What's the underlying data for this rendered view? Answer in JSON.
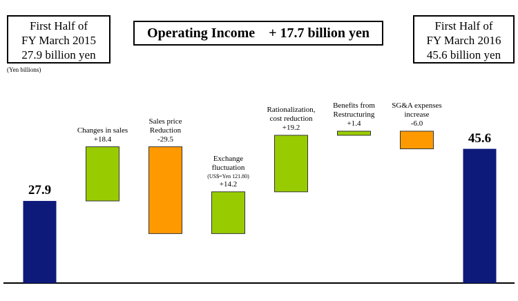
{
  "chart_data": {
    "type": "waterfall",
    "title": "Operating Income    + 17.7 billion yen",
    "left_box": [
      "First Half of",
      "FY March 2015",
      "27.9 billion yen"
    ],
    "right_box": [
      "First Half of",
      "FY March 2016",
      "45.6 billion yen"
    ],
    "unit_label": "(Yen billions)",
    "categories": [
      null,
      "Changes in sales",
      "Sales price\nReduction",
      "Exchange\nfluctuation",
      "Rationalization,\ncost reduction",
      "Benefits from\nRestructuring",
      "SG&A expenses\nincrease",
      null
    ],
    "category_notes": [
      null,
      null,
      null,
      "(US$=Yen 121.80)",
      null,
      null,
      null,
      null
    ],
    "values": [
      27.9,
      18.4,
      -29.5,
      14.2,
      19.2,
      1.4,
      -6.0,
      45.6
    ],
    "value_labels": [
      "27.9",
      "+18.4",
      "-29.5",
      "+14.2",
      "+19.2",
      "+1.4",
      "-6.0",
      "45.6"
    ],
    "is_total": [
      true,
      false,
      false,
      false,
      false,
      false,
      false,
      true
    ],
    "colors": {
      "total": "#0d1a7a",
      "increase": "#99cc00",
      "decrease": "#ff9900"
    }
  }
}
